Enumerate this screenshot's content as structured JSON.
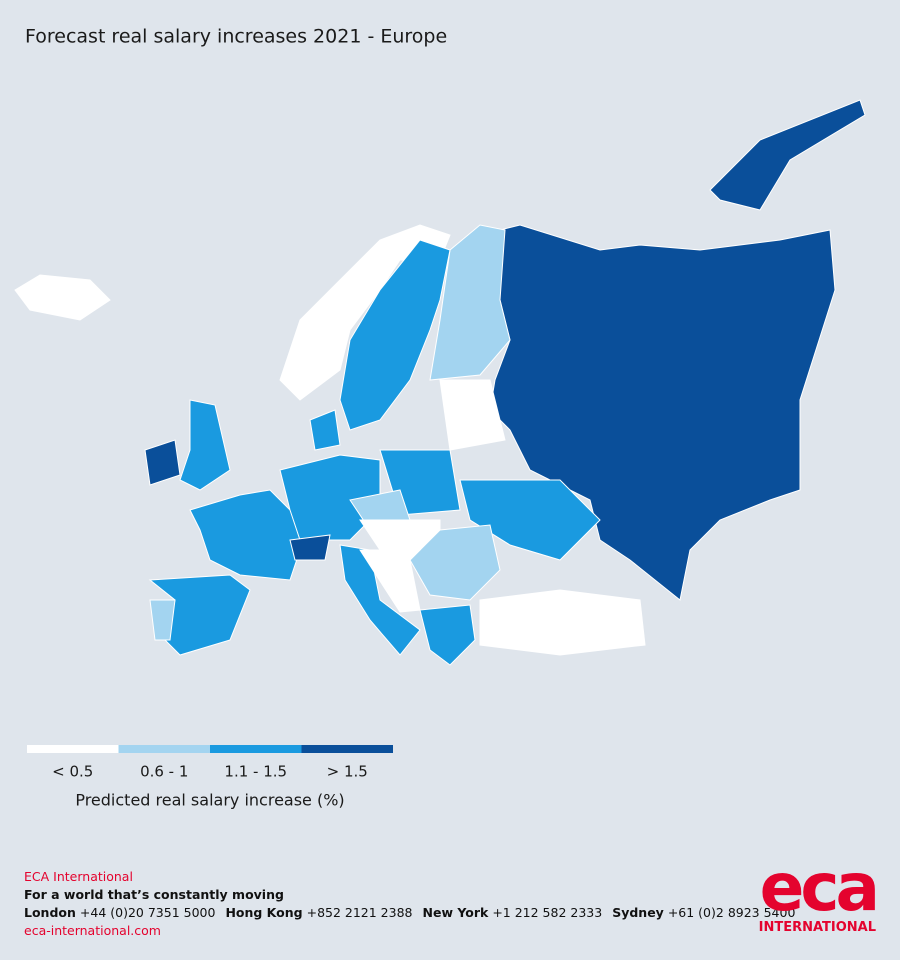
{
  "title": "Forecast real salary increases 2021 - Europe",
  "legend": {
    "title": "Predicted real salary increase (%)",
    "items": [
      {
        "label": "< 0.5",
        "color": "#ffffff"
      },
      {
        "label": "0.6 - 1",
        "color": "#a3d4f0"
      },
      {
        "label": "1.1 - 1.5",
        "color": "#1a9ae0"
      },
      {
        "label": "> 1.5",
        "color": "#0a4f9a"
      }
    ]
  },
  "footer": {
    "company": "ECA International",
    "tagline": "For a world that’s constantly moving",
    "offices": [
      {
        "city": "London",
        "phone": "+44 (0)20 7351 5000"
      },
      {
        "city": "Hong Kong",
        "phone": "+852 2121 2388"
      },
      {
        "city": "New York",
        "phone": "+1 212 582 2333"
      },
      {
        "city": "Sydney",
        "phone": "+61 (0)2 8923 5400"
      }
    ],
    "website": "eca-international.com"
  },
  "logo": {
    "text": "eca",
    "subtitle": "INTERNATIONAL"
  }
}
